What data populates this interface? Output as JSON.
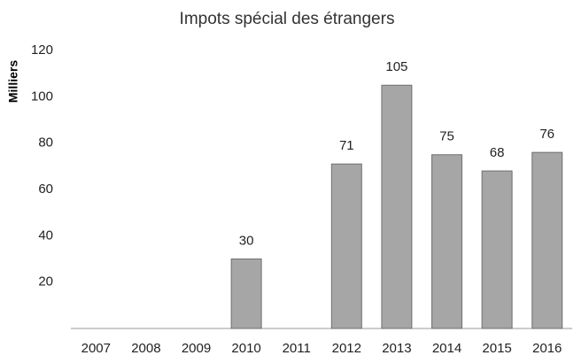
{
  "chart_data": {
    "type": "bar",
    "title": "Impots spécial des étrangers",
    "y_label": "Milliers",
    "categories": [
      "2007",
      "2008",
      "2009",
      "2010",
      "2011",
      "2012",
      "2013",
      "2014",
      "2015",
      "2016"
    ],
    "values": [
      null,
      null,
      null,
      30,
      null,
      71,
      105,
      75,
      68,
      76
    ],
    "color": "#a6a6a6",
    "ylim": [
      0,
      120
    ],
    "yticks": [
      20,
      40,
      60,
      80,
      100,
      120
    ],
    "grid": false
  }
}
